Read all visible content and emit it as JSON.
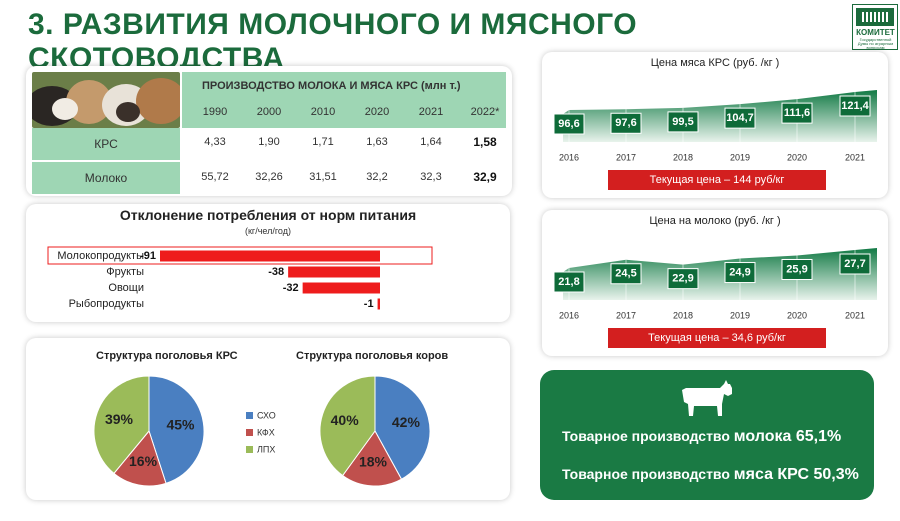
{
  "title": "3. РАЗВИТИЯ МОЛОЧНОГО И МЯСНОГО СКОТОВОДСТВА",
  "logo": {
    "name": "КОМИТЕТ",
    "subtitle": "Государственной Думы по аграрным вопросам"
  },
  "colors": {
    "brand_green": "#1b6b3c",
    "table_green": "#9ed6b4",
    "bar_red": "#ee1c1c",
    "pie_blue": "#4a7fc1",
    "pie_red": "#c0504d",
    "pie_green": "#9bbb59",
    "summary_green": "#1a7a44"
  },
  "production": {
    "title": "ПРОИЗВОДСТВО МОЛОКА И МЯСА КРС (млн т.)",
    "years": [
      "1990",
      "2000",
      "2010",
      "2020",
      "2021",
      "2022*"
    ],
    "rows": [
      {
        "label": "КРС",
        "values": [
          "4,33",
          "1,90",
          "1,71",
          "1,63",
          "1,64",
          "1,58"
        ]
      },
      {
        "label": "Молоко",
        "values": [
          "55,72",
          "32,26",
          "31,51",
          "32,2",
          "32,3",
          "32,9"
        ]
      }
    ]
  },
  "chart_data": [
    {
      "type": "bar",
      "title": "Отклонение потребления от норм питания",
      "subtitle": "(кг/чел/год)",
      "categories": [
        "Молокопродукты",
        "Фрукты",
        "Овощи",
        "Рыбопродукты"
      ],
      "values": [
        -91,
        -38,
        -32,
        -1
      ],
      "labels": [
        "-91",
        "-38",
        "-32",
        "-1"
      ],
      "orientation": "horizontal",
      "xlim": [
        -91,
        0
      ],
      "highlighted": "Молокопродукты"
    },
    {
      "type": "pie",
      "title": "Структура поголовья КРС",
      "categories": [
        "СХО",
        "КФХ",
        "ЛПХ"
      ],
      "values": [
        45,
        16,
        39
      ],
      "labels": [
        "45%",
        "16%",
        "39%"
      ],
      "legend": "right"
    },
    {
      "type": "pie",
      "title": "Структура поголовья коров",
      "categories": [
        "СХО",
        "КФХ",
        "ЛПХ"
      ],
      "values": [
        42,
        18,
        40
      ],
      "labels": [
        "42%",
        "18%",
        "40%"
      ]
    },
    {
      "type": "area",
      "title": "Цена мяса КРС (руб. /кг )",
      "x": [
        "2016",
        "2017",
        "2018",
        "2019",
        "2020",
        "2021"
      ],
      "values": [
        96.6,
        97.6,
        99.5,
        104.7,
        111.6,
        121.4
      ],
      "labels": [
        "96,6",
        "97,6",
        "99,5",
        "104,7",
        "111,6",
        "121,4"
      ],
      "current_price": "Текущая цена – 144 руб/кг"
    },
    {
      "type": "area",
      "title": "Цена на молоко (руб. /кг )",
      "x": [
        "2016",
        "2017",
        "2018",
        "2019",
        "2020",
        "2021"
      ],
      "values": [
        21.8,
        24.5,
        22.9,
        24.9,
        25.9,
        27.7
      ],
      "labels": [
        "21,8",
        "24,5",
        "22,9",
        "24,9",
        "25,9",
        "27,7"
      ],
      "current_price": "Текущая цена – 34,6 руб/кг"
    }
  ],
  "summary": {
    "milk_prefix": "Товарное производство ",
    "milk_emph": "молока 65,1%",
    "meat_prefix": "Товарное производство ",
    "meat_emph": "мяса КРС 50,3%",
    "icon": "cow-icon"
  }
}
